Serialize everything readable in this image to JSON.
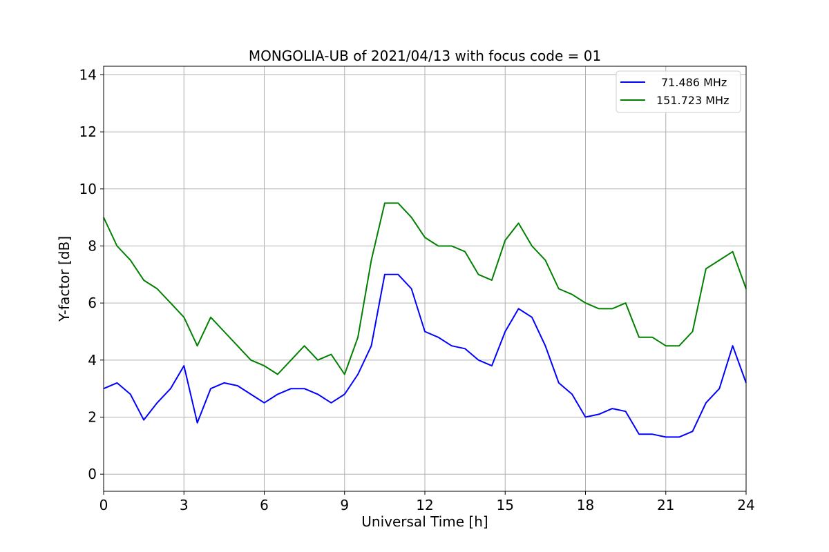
{
  "chart_data": {
    "type": "line",
    "title": "MONGOLIA-UB of 2021/04/13 with focus code = 01",
    "xlabel": "Universal Time [h]",
    "ylabel": "Y-factor [dB]",
    "xlim": [
      0,
      24
    ],
    "ylim": [
      -0.6,
      14.3
    ],
    "xticks": [
      0,
      3,
      6,
      9,
      12,
      15,
      18,
      21,
      24
    ],
    "yticks": [
      0,
      2,
      4,
      6,
      8,
      10,
      12,
      14
    ],
    "grid": true,
    "legend_position": "top-right",
    "x": [
      0,
      0.5,
      1,
      1.5,
      2,
      2.5,
      3,
      3.5,
      4,
      4.5,
      5,
      5.5,
      6,
      6.5,
      7,
      7.5,
      8,
      8.5,
      9,
      9.5,
      10,
      10.5,
      11,
      11.5,
      12,
      12.5,
      13,
      13.5,
      14,
      14.5,
      15,
      15.5,
      16,
      16.5,
      17,
      17.5,
      18,
      18.5,
      19,
      19.5,
      20,
      20.5,
      21,
      21.5,
      22,
      22.5,
      23,
      23.5,
      24
    ],
    "series": [
      {
        "name": "71.486 MHz",
        "color": "#0000ff",
        "values": [
          3.0,
          3.2,
          2.8,
          1.9,
          2.5,
          3.0,
          3.8,
          1.8,
          3.0,
          3.2,
          3.1,
          2.8,
          2.5,
          2.8,
          3.0,
          3.0,
          2.8,
          2.5,
          2.8,
          3.5,
          4.5,
          7.0,
          7.0,
          6.5,
          5.0,
          4.8,
          4.5,
          4.4,
          4.0,
          3.8,
          5.0,
          5.8,
          5.5,
          4.5,
          3.2,
          2.8,
          2.0,
          2.1,
          2.3,
          2.2,
          1.4,
          1.4,
          1.3,
          1.3,
          1.5,
          2.5,
          3.0,
          4.5,
          3.2
        ]
      },
      {
        "name": "151.723 MHz",
        "color": "#008000",
        "values": [
          9.0,
          8.0,
          7.5,
          6.8,
          6.5,
          6.0,
          5.5,
          4.5,
          5.5,
          5.0,
          4.5,
          4.0,
          3.8,
          3.5,
          4.0,
          4.5,
          4.0,
          4.2,
          3.5,
          4.8,
          7.5,
          9.5,
          9.5,
          9.0,
          8.3,
          8.0,
          8.0,
          7.8,
          7.0,
          6.8,
          8.2,
          8.8,
          8.0,
          7.5,
          6.5,
          6.3,
          6.0,
          5.8,
          5.8,
          6.0,
          4.8,
          4.8,
          4.5,
          4.5,
          5.0,
          7.2,
          7.5,
          7.8,
          6.5
        ]
      }
    ]
  }
}
